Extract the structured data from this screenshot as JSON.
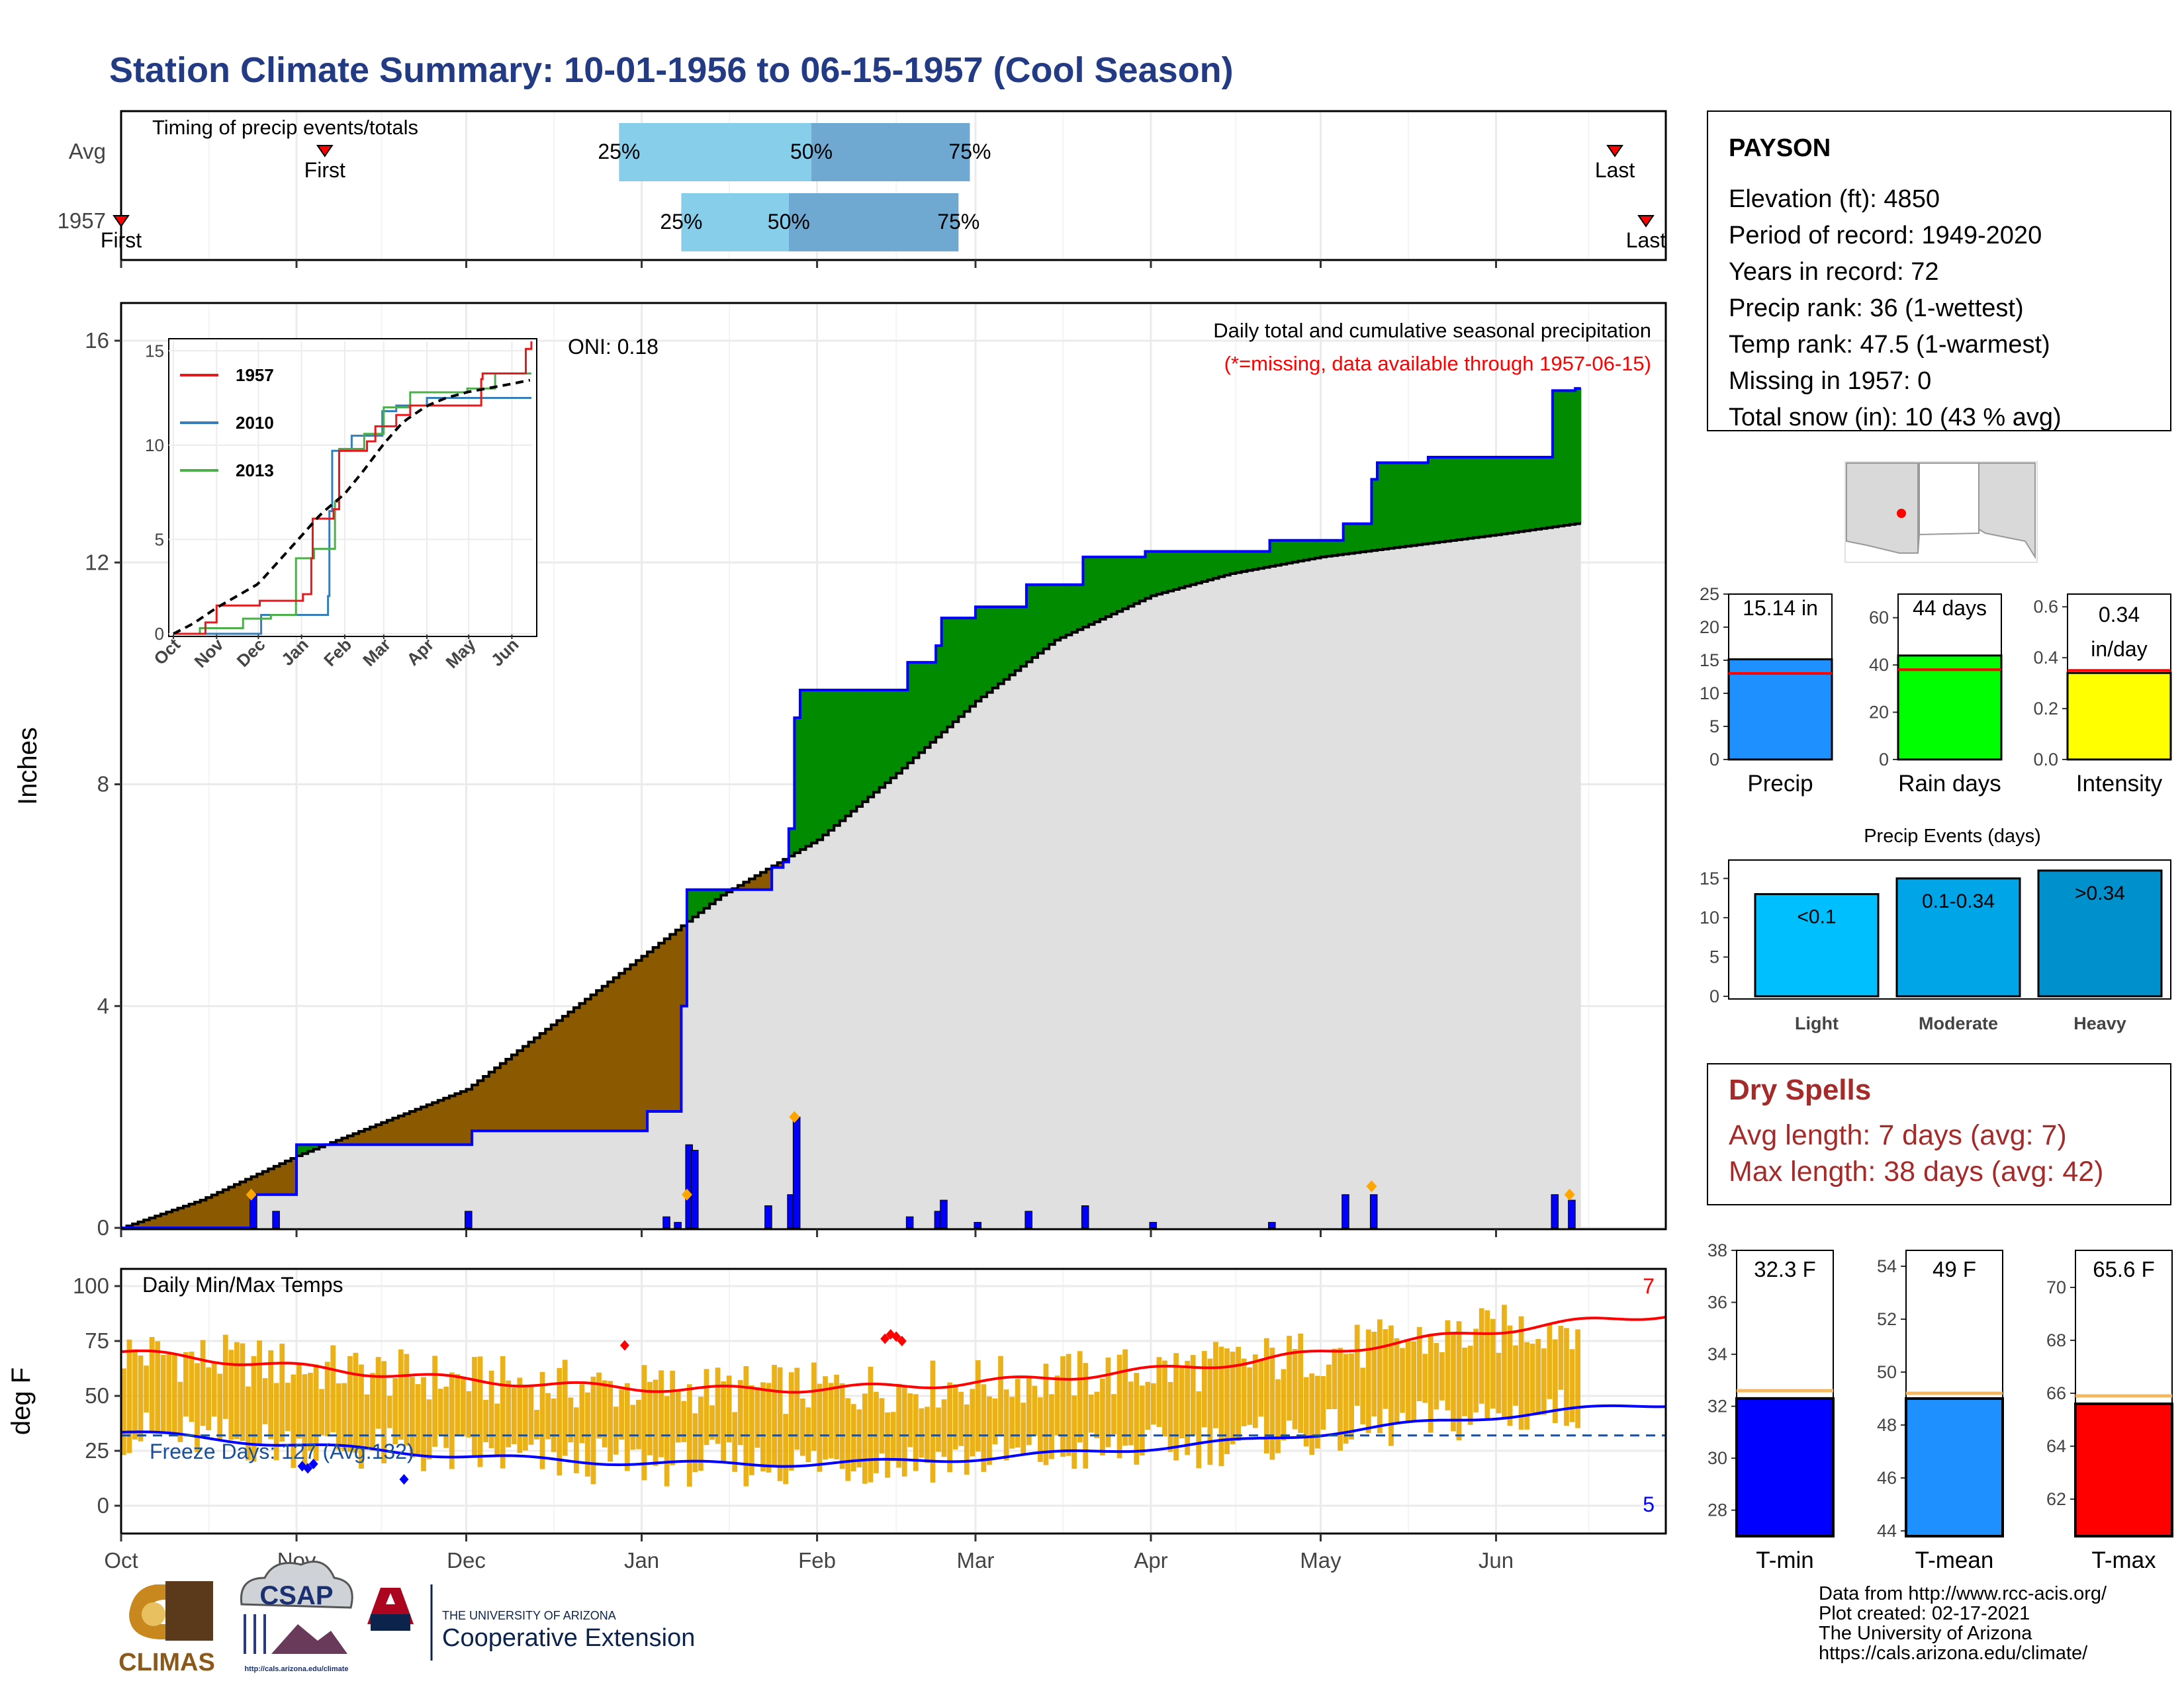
{
  "title": "Station Climate Summary: 10-01-1956 to 06-15-1957 (Cool Season)",
  "months": [
    "Oct",
    "Nov",
    "Dec",
    "Jan",
    "Feb",
    "Mar",
    "Apr",
    "May",
    "Jun"
  ],
  "colors": {
    "title": "#233b84",
    "brown": "#8b5a00",
    "green": "#008b00",
    "gray": "#e0e0e0",
    "blue": "#0000ff",
    "orange": "#e8a900",
    "red": "#ff0000",
    "drySpell": "#a52a2a",
    "lightBlue": "#87ceeb",
    "midBlue": "#6fa8d0"
  },
  "timing": {
    "label": "Timing of precip events/totals",
    "rows": [
      {
        "name": "Avg",
        "first_label": "First",
        "last_label": "Last",
        "first": "Nov 06",
        "last": "Jun 22",
        "p25": "Dec 28",
        "p50": "Jan 31",
        "p75": "Feb 28",
        "l25": "25%",
        "l50": "50%",
        "l75": "75%"
      },
      {
        "name": "1957",
        "first_label": "First",
        "last_label": "Last",
        "first": "Oct 01",
        "last": "Jul 03",
        "p25": "Jan 08",
        "p50": "Jan 27",
        "p75": "Feb 26",
        "l25": "25%",
        "l50": "50%",
        "l75": "75%"
      }
    ]
  },
  "precip": {
    "ylabel": "Inches",
    "yticks": [
      "0",
      "4",
      "8",
      "12",
      "16"
    ],
    "annot1": "Daily total and cumulative seasonal precipitation",
    "annot2": "(*=missing, data available through 1957-06-15)",
    "oni": "ONI: 0.18"
  },
  "inset": {
    "yticks": [
      "0",
      "5",
      "10",
      "15"
    ],
    "legend": [
      {
        "name": "1957",
        "color": "#e41a1c"
      },
      {
        "name": "2010",
        "color": "#377eb8"
      },
      {
        "name": "2013",
        "color": "#4daf4a"
      }
    ]
  },
  "temps": {
    "label": "Daily Min/Max Temps",
    "ylabel": "deg F",
    "yticks": [
      "0",
      "25",
      "50",
      "75",
      "100"
    ],
    "freeze": "Freeze Days: 127 (Avg:132)",
    "max_count": "7",
    "min_count": "5"
  },
  "station": {
    "name": "PAYSON",
    "lines": [
      "Elevation (ft): 4850",
      "Period of record: 1949-2020",
      "Years in record: 72",
      "Precip rank: 36 (1-wettest)",
      "Temp rank: 47.5 (1-warmest)",
      "Missing in 1957: 0",
      "Total snow (in): 10 (43 % avg)"
    ]
  },
  "summary_bars": [
    {
      "label": "Precip",
      "value": 15.14,
      "avg": 13.0,
      "text": "15.14 in",
      "color": "#1e90ff",
      "ymax": 25,
      "ticks": [
        "0",
        "5",
        "10",
        "15",
        "20",
        "25"
      ]
    },
    {
      "label": "Rain days",
      "value": 44,
      "avg": 38,
      "text": "44 days",
      "color": "#00ff00",
      "ymax": 70,
      "ticks": [
        "0",
        "20",
        "40",
        "60"
      ]
    },
    {
      "label": "Intensity",
      "value": 0.34,
      "avg": 0.35,
      "text": "0.34 in/day",
      "color": "#ffff00",
      "ymax": 0.65,
      "ticks": [
        "0.0",
        "0.2",
        "0.4",
        "0.6"
      ]
    }
  ],
  "events": {
    "title": "Precip Events (days)",
    "ticks": [
      "0",
      "5",
      "10",
      "15"
    ],
    "bars": [
      {
        "label": "Light",
        "text": "<0.1",
        "value": 13,
        "color": "#00bfff"
      },
      {
        "label": "Moderate",
        "text": "0.1-0.34",
        "value": 15,
        "color": "#00a5e8"
      },
      {
        "label": "Heavy",
        "text": ">0.34",
        "value": 16,
        "color": "#0090cc"
      }
    ]
  },
  "dry": {
    "title": "Dry Spells",
    "avg": "Avg length: 7 days (avg: 7)",
    "max": "Max length: 38 days (avg: 42)"
  },
  "temp_bars": [
    {
      "label": "T-min",
      "value": 32.3,
      "avg": 32.6,
      "text": "32.3 F",
      "color": "#0000ff",
      "ymin": 27,
      "ymax": 38,
      "ticks": [
        "28",
        "30",
        "32",
        "34",
        "36",
        "38"
      ]
    },
    {
      "label": "T-mean",
      "value": 49,
      "avg": 49.2,
      "text": "49 F",
      "color": "#1e90ff",
      "ymin": 43.8,
      "ymax": 54.6,
      "ticks": [
        "44",
        "46",
        "48",
        "50",
        "52",
        "54"
      ]
    },
    {
      "label": "T-max",
      "value": 65.6,
      "avg": 65.9,
      "text": "65.6 F",
      "color": "#ff0000",
      "ymin": 60.6,
      "ymax": 71.4,
      "ticks": [
        "62",
        "64",
        "66",
        "68",
        "70"
      ]
    }
  ],
  "footer": {
    "lines": [
      "Data from http://www.rcc-acis.org/",
      "Plot created: 02-17-2021",
      "The University of Arizona",
      "https://cals.arizona.edu/climate/"
    ],
    "climas": "CLIMAS",
    "csap": "CSAP",
    "csap_url": "http://cals.arizona.edu/climate",
    "ua_line1": "THE UNIVERSITY OF ARIZONA",
    "ua_line2": "Cooperative Extension"
  },
  "chart_data": {
    "type": "area",
    "x_label": "",
    "y_label": "Inches",
    "ylim": [
      0,
      16.5
    ],
    "series": [
      {
        "name": "1957 cumulative precip",
        "points": [
          [
            "Oct 01",
            0
          ],
          [
            "Oct 23",
            0
          ],
          [
            "Oct 24",
            0.6
          ],
          [
            "Oct 31",
            0.6
          ],
          [
            "Nov 01",
            1.5
          ],
          [
            "Dec 01",
            1.5
          ],
          [
            "Dec 02",
            1.75
          ],
          [
            "Jan 01",
            1.75
          ],
          [
            "Jan 02",
            2.1
          ],
          [
            "Jan 07",
            2.1
          ],
          [
            "Jan 08",
            4.0
          ],
          [
            "Jan 09",
            6.1
          ],
          [
            "Jan 23",
            6.1
          ],
          [
            "Jan 24",
            6.5
          ],
          [
            "Jan 26",
            6.6
          ],
          [
            "Jan 27",
            7.2
          ],
          [
            "Jan 28",
            9.2
          ],
          [
            "Jan 29",
            9.7
          ],
          [
            "Feb 16",
            9.7
          ],
          [
            "Feb 17",
            10.2
          ],
          [
            "Feb 22",
            10.5
          ],
          [
            "Feb 23",
            11.0
          ],
          [
            "Mar 01",
            11.2
          ],
          [
            "Mar 10",
            11.6
          ],
          [
            "Mar 20",
            12.1
          ],
          [
            "Mar 31",
            12.2
          ],
          [
            "Apr 22",
            12.4
          ],
          [
            "May 05",
            12.7
          ],
          [
            "May 10",
            13.5
          ],
          [
            "May 11",
            13.8
          ],
          [
            "May 20",
            13.9
          ],
          [
            "Jun 10",
            13.9
          ],
          [
            "Jun 11",
            15.1
          ],
          [
            "Jun 15",
            15.14
          ]
        ]
      },
      {
        "name": "Average cumulative precip",
        "points": [
          [
            "Oct 01",
            0
          ],
          [
            "Oct 15",
            0.5
          ],
          [
            "Nov 01",
            1.3
          ],
          [
            "Dec 01",
            2.5
          ],
          [
            "Jan 01",
            4.9
          ],
          [
            "Jan 15",
            6.0
          ],
          [
            "Feb 01",
            7.0
          ],
          [
            "Feb 15",
            8.2
          ],
          [
            "Mar 01",
            9.5
          ],
          [
            "Mar 15",
            10.6
          ],
          [
            "Apr 01",
            11.4
          ],
          [
            "Apr 15",
            11.8
          ],
          [
            "May 01",
            12.1
          ],
          [
            "Jun 01",
            12.5
          ],
          [
            "Jun 15",
            12.7
          ]
        ]
      }
    ],
    "daily_bars": [
      [
        "Oct 24",
        0.6
      ],
      [
        "Oct 28",
        0.3
      ],
      [
        "Dec 01",
        0.3
      ],
      [
        "Jan 05",
        0.2
      ],
      [
        "Jan 07",
        0.1
      ],
      [
        "Jan 09",
        1.5
      ],
      [
        "Jan 10",
        1.4
      ],
      [
        "Jan 23",
        0.4
      ],
      [
        "Jan 27",
        0.6
      ],
      [
        "Jan 28",
        2.0
      ],
      [
        "Feb 17",
        0.2
      ],
      [
        "Feb 22",
        0.3
      ],
      [
        "Feb 23",
        0.5
      ],
      [
        "Mar 01",
        0.1
      ],
      [
        "Mar 10",
        0.3
      ],
      [
        "Mar 20",
        0.4
      ],
      [
        "Apr 01",
        0.1
      ],
      [
        "Apr 22",
        0.1
      ],
      [
        "May 05",
        0.6
      ],
      [
        "May 10",
        0.6
      ],
      [
        "Jun 11",
        0.6
      ],
      [
        "Jun 14",
        0.5
      ]
    ]
  }
}
